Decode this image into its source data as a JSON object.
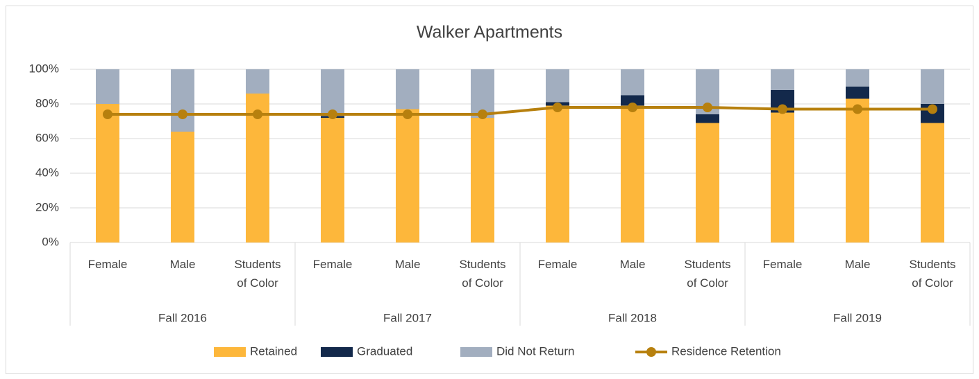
{
  "chart_data": {
    "type": "stacked-bar-line",
    "title": "Walker Apartments",
    "groups": [
      {
        "label": "Fall 2016",
        "categories": [
          "Female",
          "Male",
          "Students of Color"
        ]
      },
      {
        "label": "Fall 2017",
        "categories": [
          "Female",
          "Male",
          "Students of Color"
        ]
      },
      {
        "label": "Fall 2018",
        "categories": [
          "Female",
          "Male",
          "Students of Color"
        ]
      },
      {
        "label": "Fall 2019",
        "categories": [
          "Female",
          "Male",
          "Students of Color"
        ]
      }
    ],
    "series": [
      {
        "name": "Retained",
        "color": "#fdb73b",
        "kind": "bar",
        "values": [
          80,
          64,
          86,
          72,
          77,
          72,
          79,
          79,
          69,
          75,
          83,
          69
        ]
      },
      {
        "name": "Graduated",
        "color": "#13294b",
        "kind": "bar",
        "values": [
          0,
          0,
          0,
          1,
          0,
          0,
          2,
          6,
          5,
          13,
          7,
          11
        ]
      },
      {
        "name": "Did Not Return",
        "color": "#a2aebf",
        "kind": "bar",
        "values": [
          20,
          36,
          14,
          27,
          23,
          28,
          19,
          15,
          26,
          12,
          10,
          20
        ]
      },
      {
        "name": "Residence Retention",
        "color": "#b7800e",
        "kind": "line",
        "values": [
          74,
          74,
          74,
          74,
          74,
          74,
          78,
          78,
          78,
          77,
          77,
          77
        ]
      }
    ],
    "ylim": [
      0,
      100
    ],
    "yticks": [
      {
        "value": 0,
        "label": "0%"
      },
      {
        "value": 20,
        "label": "20%"
      },
      {
        "value": 40,
        "label": "40%"
      },
      {
        "value": 60,
        "label": "60%"
      },
      {
        "value": 80,
        "label": "80%"
      },
      {
        "value": 100,
        "label": "100%"
      }
    ],
    "grid": true,
    "legend": "bottom"
  }
}
